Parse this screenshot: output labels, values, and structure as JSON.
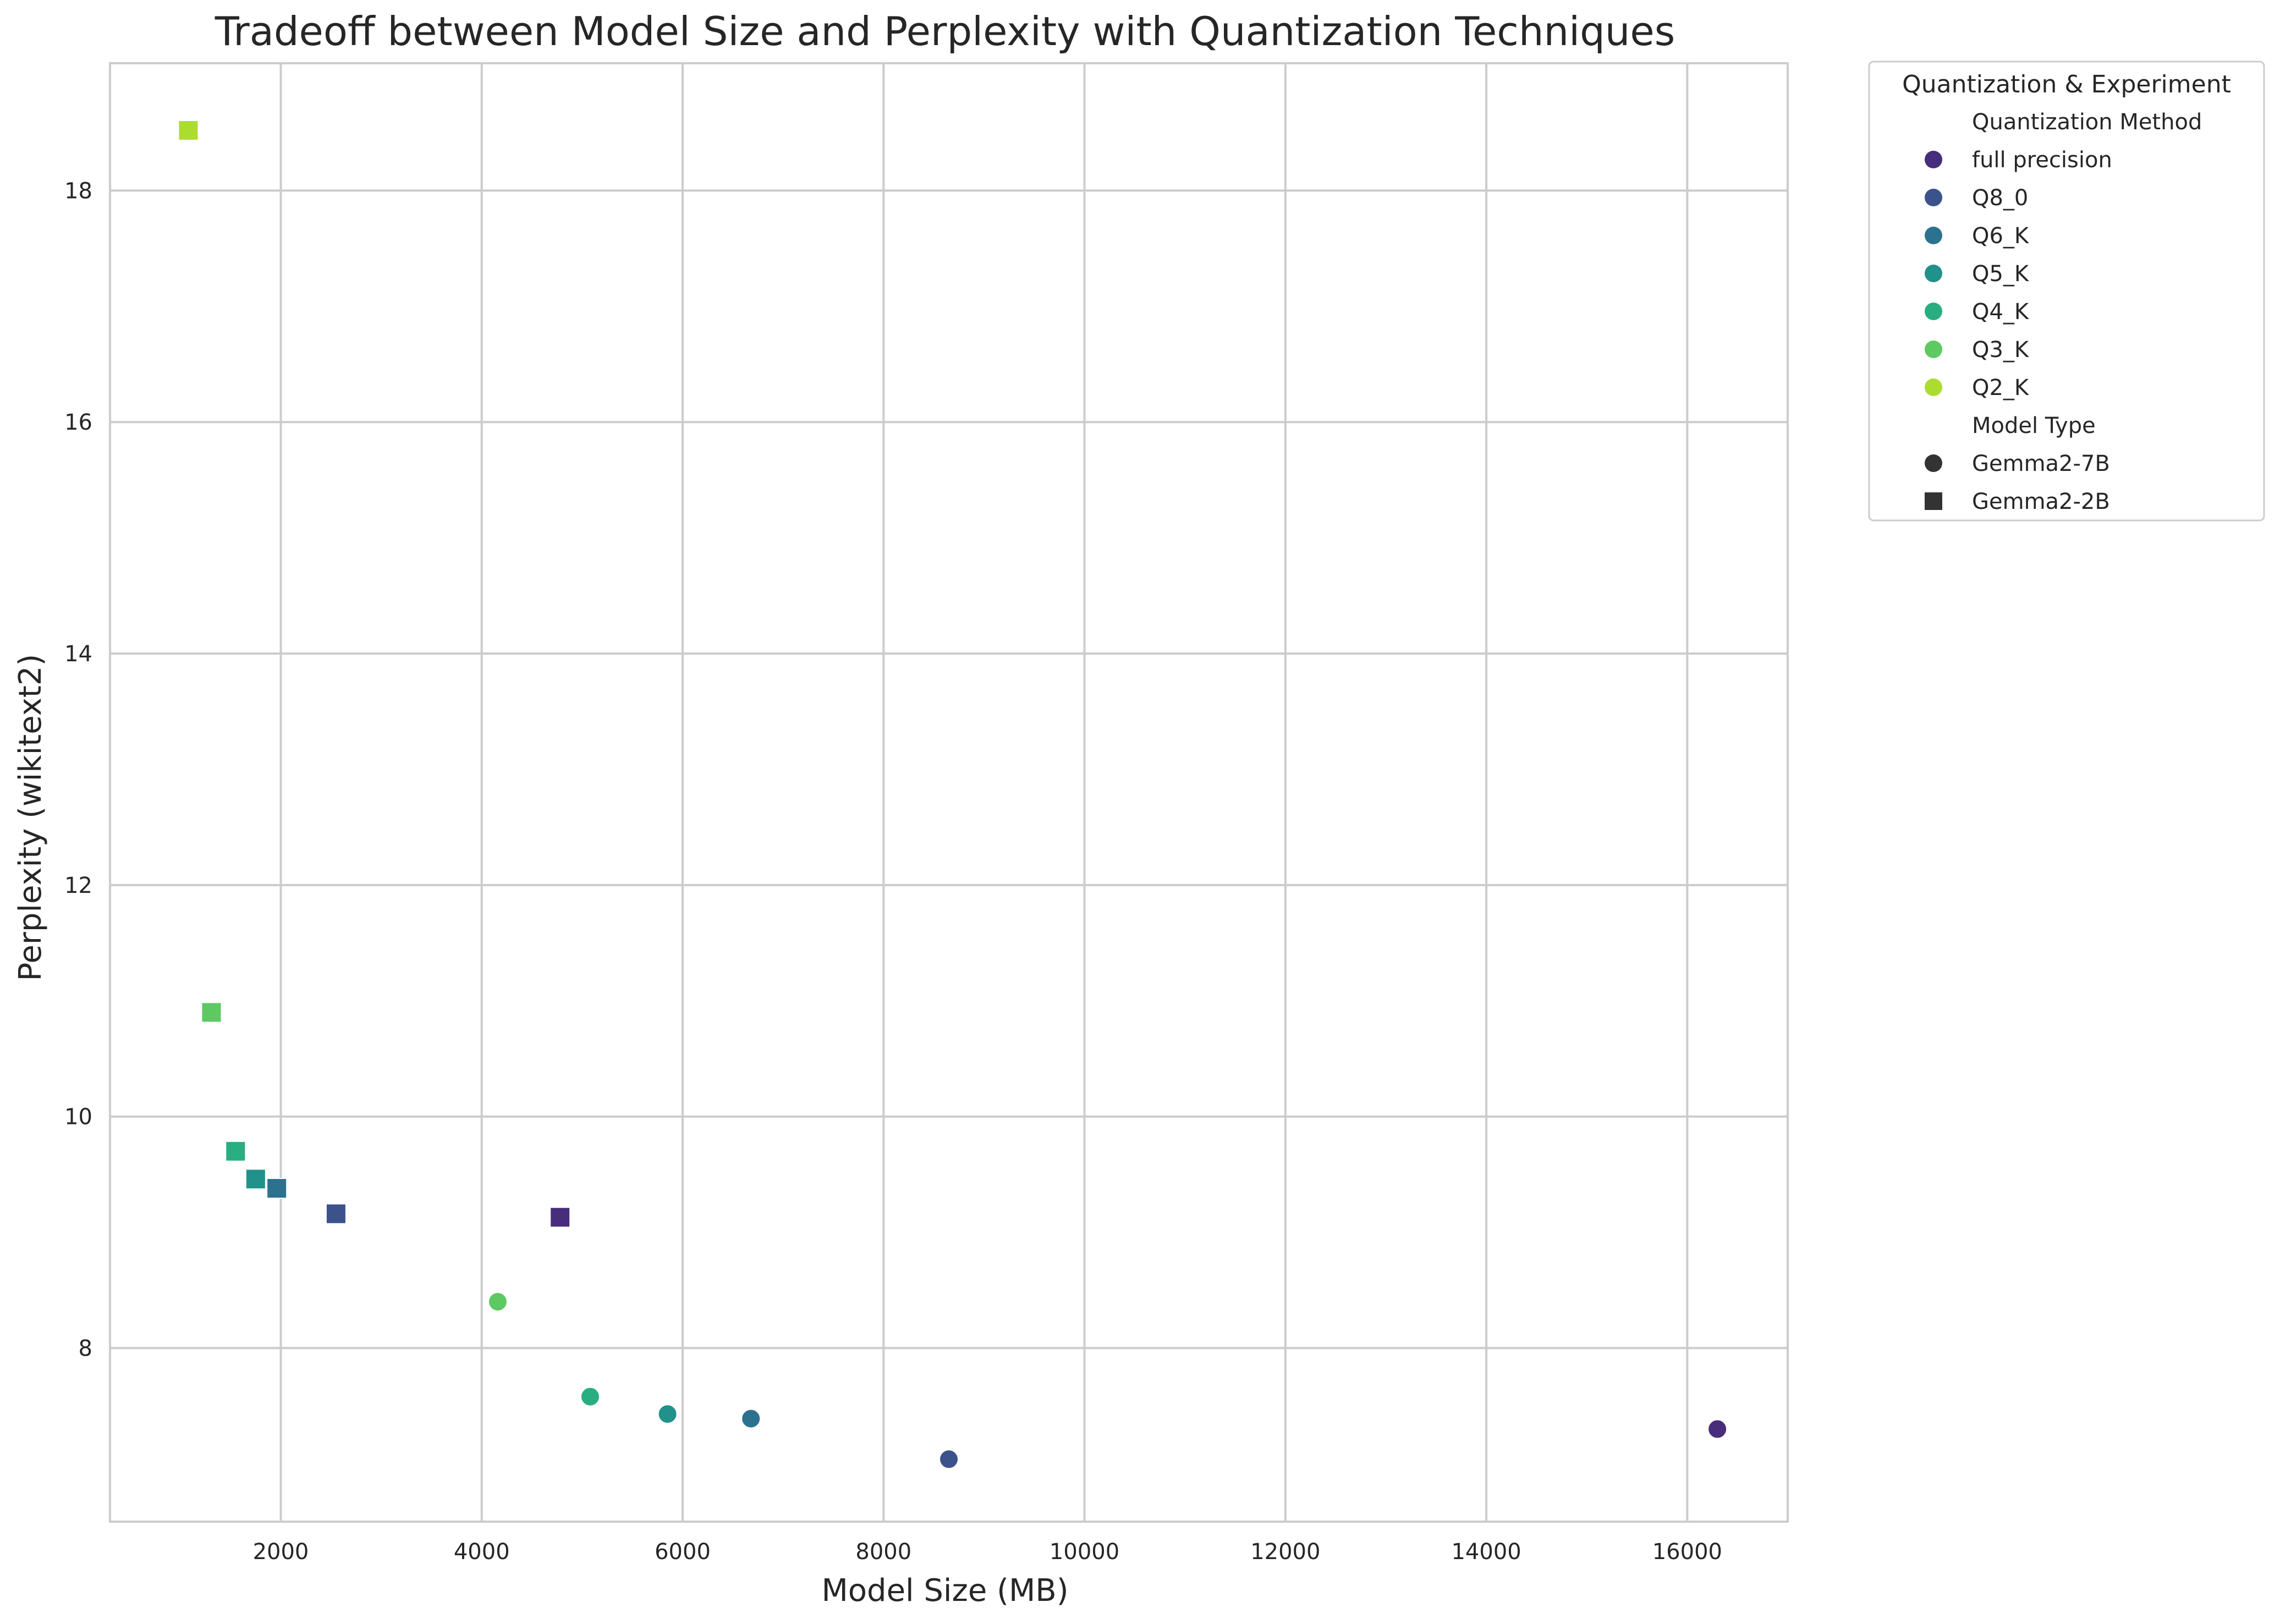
{
  "chart_data": {
    "type": "scatter",
    "title": "Tradeoff between Model Size and Perplexity with Quantization Techniques",
    "xlabel": "Model Size (MB)",
    "ylabel": "Perplexity (wikitext2)",
    "xlim": [
      300,
      17000
    ],
    "ylim": [
      6.5,
      19.1
    ],
    "xticks": [
      2000,
      4000,
      6000,
      8000,
      10000,
      12000,
      14000,
      16000
    ],
    "yticks": [
      8,
      10,
      12,
      14,
      16,
      18
    ],
    "xtick_labels": [
      "2000",
      "4000",
      "6000",
      "8000",
      "10000",
      "12000",
      "14000",
      "16000"
    ],
    "ytick_labels": [
      "8",
      "10",
      "12",
      "14",
      "16",
      "18"
    ],
    "grid": true,
    "legend": {
      "title": "Quantization & Experiment",
      "placement": "outside-top-right",
      "hue_title": "Quantization Method",
      "style_title": "Model Type",
      "hue_entries": [
        {
          "label": "full precision",
          "color": "#472d7b"
        },
        {
          "label": "Q8_0",
          "color": "#3b528b"
        },
        {
          "label": "Q6_K",
          "color": "#2c728e"
        },
        {
          "label": "Q5_K",
          "color": "#21918c"
        },
        {
          "label": "Q4_K",
          "color": "#28ae80"
        },
        {
          "label": "Q3_K",
          "color": "#5ec962"
        },
        {
          "label": "Q2_K",
          "color": "#addc30"
        }
      ],
      "style_entries": [
        {
          "label": "Gemma2-7B",
          "marker": "circle"
        },
        {
          "label": "Gemma2-2B",
          "marker": "square"
        }
      ]
    },
    "series": [
      {
        "name": "Gemma2-7B",
        "marker": "circle",
        "points": [
          {
            "x": 16300,
            "y": 7.3,
            "method": "full precision"
          },
          {
            "x": 8650,
            "y": 7.04,
            "method": "Q8_0"
          },
          {
            "x": 6680,
            "y": 7.39,
            "method": "Q6_K"
          },
          {
            "x": 5850,
            "y": 7.43,
            "method": "Q5_K"
          },
          {
            "x": 5080,
            "y": 7.58,
            "method": "Q4_K"
          },
          {
            "x": 4160,
            "y": 8.4,
            "method": "Q3_K"
          }
        ]
      },
      {
        "name": "Gemma2-2B",
        "marker": "square",
        "points": [
          {
            "x": 4780,
            "y": 9.13,
            "method": "full precision"
          },
          {
            "x": 2550,
            "y": 9.16,
            "method": "Q8_0"
          },
          {
            "x": 1960,
            "y": 9.38,
            "method": "Q6_K"
          },
          {
            "x": 1750,
            "y": 9.46,
            "method": "Q5_K"
          },
          {
            "x": 1550,
            "y": 9.7,
            "method": "Q4_K"
          },
          {
            "x": 1310,
            "y": 10.9,
            "method": "Q3_K"
          },
          {
            "x": 1080,
            "y": 18.52,
            "method": "Q2_K"
          }
        ]
      }
    ]
  }
}
